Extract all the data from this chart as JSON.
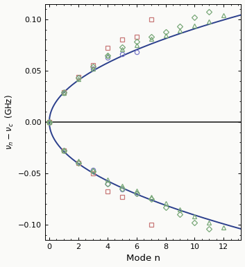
{
  "title": "",
  "xlabel": "Mode n",
  "ylabel": "$\\nu_n - \\nu_c$  (GHz)",
  "xlim": [
    -0.3,
    13.2
  ],
  "ylim": [
    -0.115,
    0.115
  ],
  "curve_color": "#2B3F8C",
  "curve_lw": 1.4,
  "hline_color": "#111111",
  "hline_lw": 1.1,
  "scale": 0.0287,
  "yticks": [
    -0.1,
    -0.05,
    0.0,
    0.05,
    0.1
  ],
  "xticks": [
    0,
    2,
    4,
    6,
    8,
    10,
    12
  ],
  "data_circles_pos": [
    [
      0,
      0.0
    ],
    [
      1,
      0.028
    ],
    [
      2,
      0.043
    ],
    [
      3,
      0.052
    ],
    [
      4,
      0.063
    ],
    [
      5,
      0.066
    ],
    [
      6,
      0.068
    ]
  ],
  "data_circles_neg": [
    [
      0,
      0.0
    ],
    [
      1,
      -0.028
    ],
    [
      2,
      -0.04
    ],
    [
      3,
      -0.047
    ],
    [
      4,
      -0.06
    ],
    [
      5,
      -0.066
    ],
    [
      6,
      -0.07
    ]
  ],
  "data_squares_pos": [
    [
      0,
      0.0
    ],
    [
      1,
      0.029
    ],
    [
      2,
      0.044
    ],
    [
      3,
      0.055
    ],
    [
      4,
      0.072
    ],
    [
      5,
      0.08
    ],
    [
      6,
      0.083
    ],
    [
      7,
      0.1
    ]
  ],
  "data_squares_neg": [
    [
      0,
      0.0
    ],
    [
      1,
      -0.028
    ],
    [
      2,
      -0.04
    ],
    [
      3,
      -0.05
    ],
    [
      4,
      -0.068
    ],
    [
      5,
      -0.073
    ],
    [
      7,
      -0.1
    ]
  ],
  "data_diamonds_pos": [
    [
      0,
      0.0
    ],
    [
      1,
      0.029
    ],
    [
      2,
      0.043
    ],
    [
      3,
      0.054
    ],
    [
      4,
      0.065
    ],
    [
      5,
      0.073
    ],
    [
      6,
      0.078
    ],
    [
      7,
      0.083
    ],
    [
      8,
      0.088
    ],
    [
      9,
      0.093
    ],
    [
      10,
      0.102
    ],
    [
      11,
      0.107
    ]
  ],
  "data_diamonds_neg": [
    [
      0,
      0.0
    ],
    [
      1,
      -0.028
    ],
    [
      2,
      -0.04
    ],
    [
      3,
      -0.048
    ],
    [
      4,
      -0.06
    ],
    [
      5,
      -0.065
    ],
    [
      6,
      -0.07
    ],
    [
      7,
      -0.075
    ],
    [
      8,
      -0.083
    ],
    [
      9,
      -0.09
    ],
    [
      10,
      -0.098
    ],
    [
      11,
      -0.104
    ]
  ],
  "data_triangles_pos": [
    [
      0,
      0.0
    ],
    [
      1,
      0.028
    ],
    [
      2,
      0.042
    ],
    [
      3,
      0.052
    ],
    [
      4,
      0.065
    ],
    [
      5,
      0.071
    ],
    [
      6,
      0.075
    ],
    [
      7,
      0.081
    ],
    [
      8,
      0.084
    ],
    [
      9,
      0.089
    ],
    [
      10,
      0.094
    ],
    [
      11,
      0.098
    ],
    [
      12,
      0.104
    ]
  ],
  "data_triangles_neg": [
    [
      0,
      0.0
    ],
    [
      1,
      -0.028
    ],
    [
      2,
      -0.038
    ],
    [
      3,
      -0.047
    ],
    [
      4,
      -0.056
    ],
    [
      5,
      -0.062
    ],
    [
      6,
      -0.067
    ],
    [
      7,
      -0.073
    ],
    [
      8,
      -0.079
    ],
    [
      9,
      -0.085
    ],
    [
      10,
      -0.092
    ],
    [
      11,
      -0.098
    ],
    [
      12,
      -0.103
    ]
  ],
  "circle_color": "#7878C8",
  "square_color": "#C87878",
  "diamond_color": "#78A878",
  "triangle_color": "#78A878",
  "marker_size": 4.5,
  "marker_lw": 0.9,
  "bg_color": "#FAFAF8"
}
